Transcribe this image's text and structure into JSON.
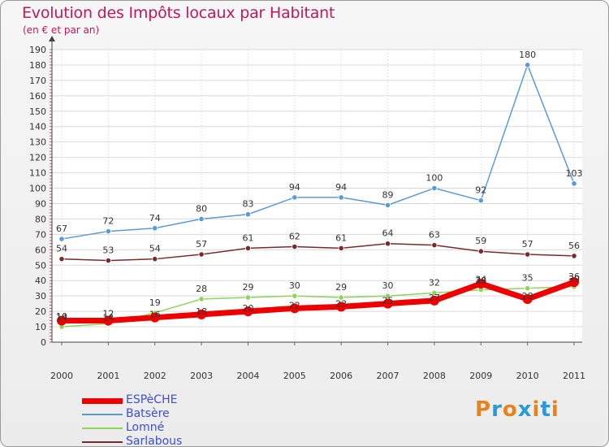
{
  "title": "Evolution des Impôts locaux par Habitant",
  "subtitle": "(en € et par an)",
  "logo": {
    "text": "Proxiti",
    "colors": [
      "#e8821e",
      "#2a9ad6",
      "#e8821e",
      "#2a9ad6",
      "#e8821e",
      "#2a9ad6",
      "#e8821e"
    ]
  },
  "chart_data": {
    "type": "line",
    "x": [
      "2000",
      "2001",
      "2002",
      "2003",
      "2004",
      "2005",
      "2006",
      "2007",
      "2008",
      "2009",
      "2010",
      "2011"
    ],
    "ylim": [
      0,
      190
    ],
    "yticks": [
      0,
      10,
      20,
      30,
      40,
      50,
      60,
      70,
      80,
      90,
      100,
      110,
      120,
      130,
      140,
      150,
      160,
      170,
      180,
      190
    ],
    "grid": true,
    "legend_position": "bottom-left",
    "series": [
      {
        "name": "Batsère",
        "color": "#5b9bd5",
        "values": [
          67,
          72,
          74,
          80,
          83,
          94,
          94,
          89,
          100,
          92,
          180,
          103
        ]
      },
      {
        "name": "Sarlabous",
        "color": "#7a2a2a",
        "values": [
          54,
          53,
          54,
          57,
          61,
          62,
          61,
          64,
          63,
          59,
          57,
          56
        ]
      },
      {
        "name": "Lomné",
        "color": "#8fd45a",
        "values": [
          10,
          12,
          19,
          28,
          29,
          30,
          29,
          30,
          32,
          34,
          35,
          36
        ]
      },
      {
        "name": "ESPèCHE",
        "color": "#ee0000",
        "values": [
          14,
          14,
          16,
          18,
          20,
          22,
          23,
          25,
          27,
          38,
          28,
          39
        ]
      }
    ],
    "data_labels": {
      "Batsère": [
        "67",
        "72",
        "74",
        "80",
        "83",
        "94",
        "94",
        "89",
        "100",
        "92",
        "180",
        "103"
      ],
      "Sarlabous": [
        "54",
        "53",
        "54",
        "57",
        "61",
        "62",
        "61",
        "64",
        "63",
        "59",
        "57",
        "56"
      ],
      "Lomné": [
        "10",
        "12",
        "19",
        "28",
        "29",
        "30",
        "29",
        "30",
        "32",
        "34",
        "35",
        "36"
      ],
      "ESPèCHE": [
        "14",
        "14",
        "16",
        "18",
        "20",
        "22",
        "23",
        "25",
        "27",
        "38",
        "28",
        "39"
      ]
    },
    "legend": [
      {
        "label": "ESPèCHE",
        "color": "#ee0000"
      },
      {
        "label": "Batsère",
        "color": "#5b9bd5"
      },
      {
        "label": "Lomné",
        "color": "#8fd45a"
      },
      {
        "label": "Sarlabous",
        "color": "#7a2a2a"
      }
    ]
  }
}
